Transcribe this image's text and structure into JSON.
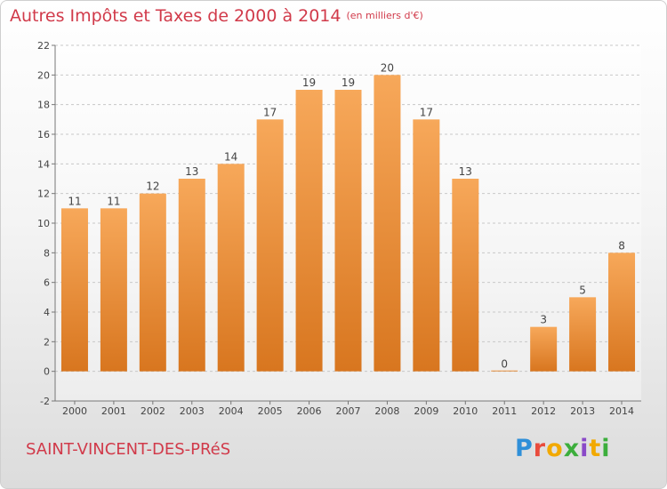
{
  "title": "Autres Impôts et Taxes de 2000 à 2014",
  "unit_note": "(en milliers d'€)",
  "commune": "SAINT-VINCENT-DES-PRéS",
  "logo": {
    "text": "Proxiti"
  },
  "colors": {
    "bar_top": "#f7a85a",
    "bar_bottom": "#d8761f",
    "title": "#d13a4a",
    "grid": "#c8c8c8",
    "axis_text": "#444444"
  },
  "chart_data": {
    "type": "bar",
    "categories": [
      "2000",
      "2001",
      "2002",
      "2003",
      "2004",
      "2005",
      "2006",
      "2007",
      "2008",
      "2009",
      "2010",
      "2011",
      "2012",
      "2013",
      "2014"
    ],
    "values": [
      11,
      11,
      12,
      13,
      14,
      17,
      19,
      19,
      20,
      17,
      13,
      0,
      3,
      5,
      8
    ],
    "ylim": [
      -2,
      22
    ],
    "yticks": [
      -2,
      0,
      2,
      4,
      6,
      8,
      10,
      12,
      14,
      16,
      18,
      20,
      22
    ],
    "grid": "horizontal dashed",
    "data_labels": true
  }
}
